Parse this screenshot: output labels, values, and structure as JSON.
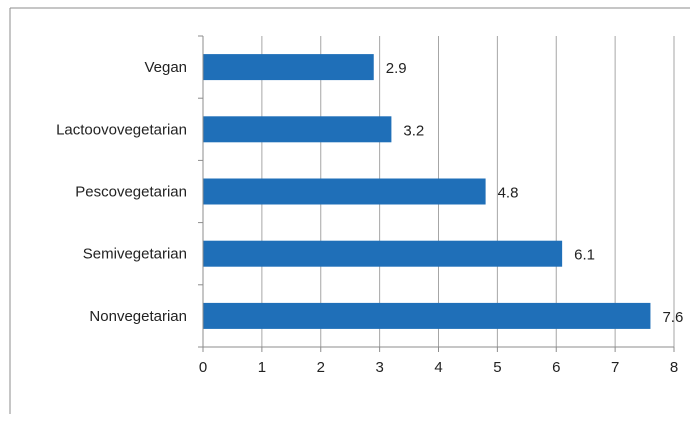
{
  "chart_data": {
    "type": "bar",
    "orientation": "horizontal",
    "categories": [
      "Vegan",
      "Lactoovovegetarian",
      "Pescovegetarian",
      "Semivegetarian",
      "Nonvegetarian"
    ],
    "values": [
      2.9,
      3.2,
      4.8,
      6.1,
      7.6
    ],
    "value_labels": [
      "2.9",
      "3.2",
      "4.8",
      "6.1",
      "7.6"
    ],
    "xlim": [
      0,
      8
    ],
    "xticks": [
      0,
      1,
      2,
      3,
      4,
      5,
      6,
      7,
      8
    ],
    "xtick_labels": [
      "0",
      "1",
      "2",
      "3",
      "4",
      "5",
      "6",
      "7",
      "8"
    ],
    "title": "",
    "xlabel": "",
    "ylabel": "",
    "grid": "vertical",
    "legend": "none",
    "colors": {
      "bar": "#1f6fb8",
      "grid": "#a6a6a6",
      "axis": "#8c8c8c",
      "frame": "#8c8c8c"
    }
  }
}
